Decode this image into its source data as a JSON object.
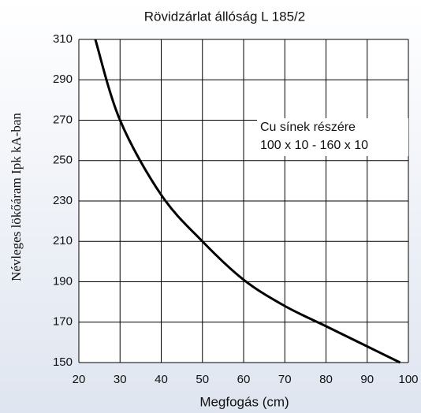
{
  "chart_data": {
    "type": "line",
    "title": "Rövidzárlat állóság L 185/2",
    "x_label": "Megfogás (cm)",
    "y_label": "Névleges lökőáram Ipk kA-ban",
    "annotation": [
      "Cu sínek részére",
      "100 x 10 - 160 x 10"
    ],
    "x": [
      24,
      30,
      40,
      50,
      60,
      70,
      80,
      90,
      98
    ],
    "values": [
      310,
      270,
      233,
      210,
      191,
      178,
      168,
      158,
      150
    ],
    "color": "#000000",
    "xlim": [
      20,
      100
    ],
    "xticks": [
      20,
      30,
      40,
      50,
      60,
      70,
      80,
      90,
      100
    ],
    "ylim": [
      150,
      310
    ],
    "yticks": [
      150,
      170,
      190,
      210,
      230,
      250,
      270,
      290,
      310
    ],
    "grid": true
  }
}
